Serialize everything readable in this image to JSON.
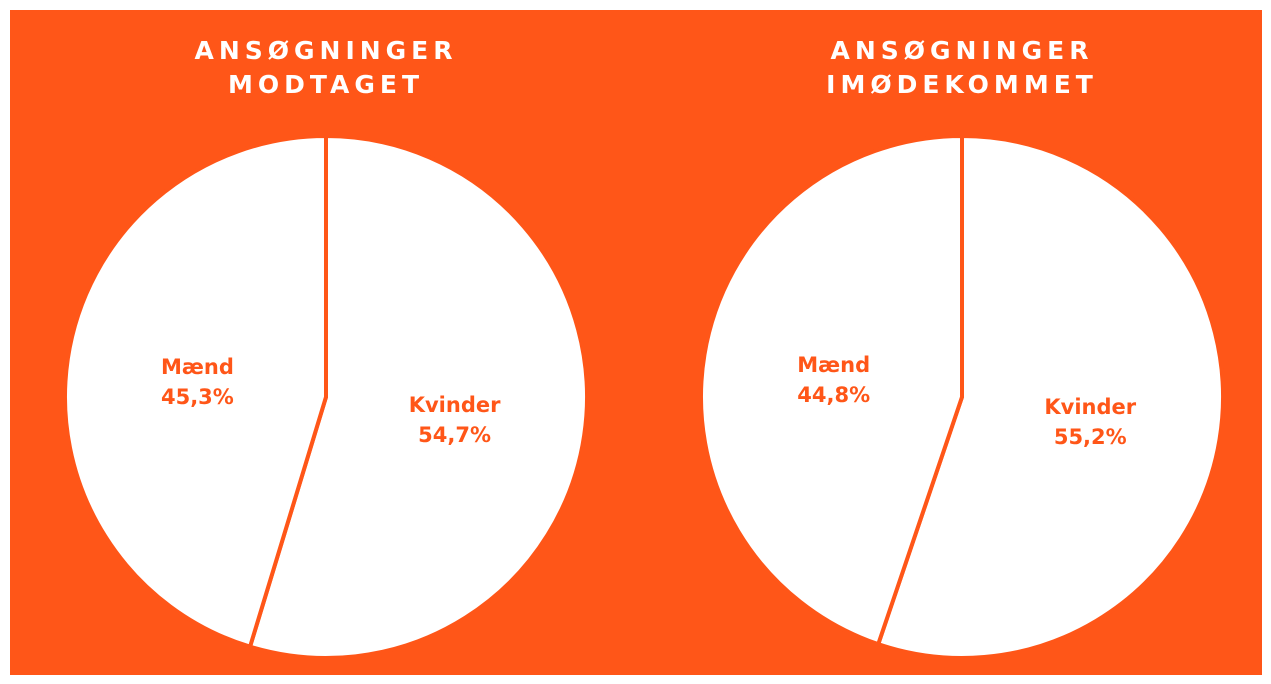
{
  "chart_data": [
    {
      "type": "pie",
      "title": "ANSØGNINGER MODTAGET",
      "categories": [
        "Kvinder",
        "Mænd"
      ],
      "values": [
        54.7,
        45.3
      ],
      "value_labels": [
        "54,7%",
        "45,3%"
      ],
      "colors": [
        "#ffffff",
        "#ffffff"
      ]
    },
    {
      "type": "pie",
      "title": "ANSØGNINGER IMØDEKOMMET",
      "categories": [
        "Kvinder",
        "Mænd"
      ],
      "values": [
        55.2,
        44.8
      ],
      "value_labels": [
        "55,2%",
        "44,8%"
      ],
      "colors": [
        "#ffffff",
        "#ffffff"
      ]
    }
  ]
}
